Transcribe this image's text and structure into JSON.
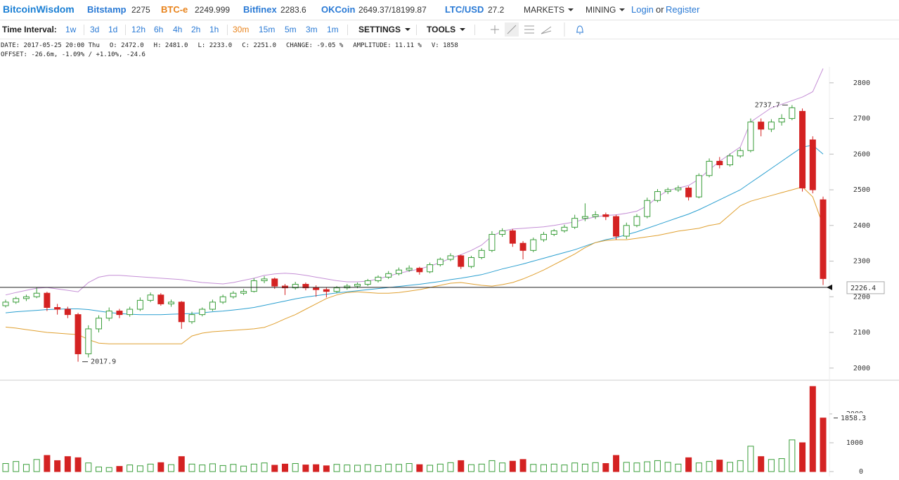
{
  "nav": {
    "brand": "BitcoinWisdom",
    "tickers": [
      {
        "name": "Bitstamp",
        "price": "2275"
      },
      {
        "name": "BTC-e",
        "price": "2249.999"
      },
      {
        "name": "Bitfinex",
        "price": "2283.6"
      },
      {
        "name": "OKCoin",
        "price": "2649.37/18199.87"
      },
      {
        "name": "LTC/USD",
        "price": "27.2"
      }
    ],
    "menus": [
      "MARKETS",
      "MINING"
    ],
    "login": "Login",
    "or": "or",
    "register": "Register"
  },
  "toolbar": {
    "label": "Time Interval:",
    "intervals": [
      "1w",
      "3d",
      "1d",
      "12h",
      "6h",
      "4h",
      "2h",
      "1h",
      "30m",
      "15m",
      "5m",
      "3m",
      "1m"
    ],
    "active_interval": 8,
    "settings": "SETTINGS",
    "tools": "TOOLS"
  },
  "info": {
    "line1": [
      "DATE: 2017-05-25 20:00 Thu",
      "O: 2472.0",
      "H: 2481.0",
      "L: 2233.0",
      "C: 2251.0",
      "CHANGE: -9.05 %",
      "AMPLITUDE: 11.11 %",
      "V: 1858"
    ],
    "line2": "OFFSET: -26.6m, -1.09% / +1.10%, -24.6"
  },
  "chart_data": {
    "type": "candlestick",
    "candles": [
      [
        2175,
        2192,
        2170,
        2185
      ],
      [
        2185,
        2200,
        2180,
        2195
      ],
      [
        2195,
        2206,
        2188,
        2200
      ],
      [
        2200,
        2226,
        2196,
        2210
      ],
      [
        2210,
        2214,
        2160,
        2170
      ],
      [
        2170,
        2180,
        2150,
        2165
      ],
      [
        2165,
        2172,
        2140,
        2150
      ],
      [
        2150,
        2155,
        2017.9,
        2040
      ],
      [
        2040,
        2120,
        2030,
        2110
      ],
      [
        2110,
        2148,
        2100,
        2140
      ],
      [
        2140,
        2170,
        2132,
        2160
      ],
      [
        2160,
        2166,
        2140,
        2150
      ],
      [
        2150,
        2172,
        2144,
        2165
      ],
      [
        2165,
        2198,
        2160,
        2190
      ],
      [
        2190,
        2212,
        2185,
        2205
      ],
      [
        2205,
        2210,
        2175,
        2180
      ],
      [
        2180,
        2192,
        2172,
        2185
      ],
      [
        2185,
        2188,
        2110,
        2130
      ],
      [
        2130,
        2158,
        2124,
        2150
      ],
      [
        2150,
        2170,
        2145,
        2165
      ],
      [
        2165,
        2192,
        2160,
        2185
      ],
      [
        2185,
        2206,
        2180,
        2200
      ],
      [
        2200,
        2216,
        2195,
        2210
      ],
      [
        2210,
        2222,
        2205,
        2215
      ],
      [
        2215,
        2252,
        2212,
        2245
      ],
      [
        2245,
        2258,
        2238,
        2250
      ],
      [
        2250,
        2254,
        2222,
        2230
      ],
      [
        2230,
        2236,
        2205,
        2225
      ],
      [
        2225,
        2242,
        2220,
        2235
      ],
      [
        2235,
        2240,
        2218,
        2225
      ],
      [
        2225,
        2232,
        2200,
        2220
      ],
      [
        2220,
        2226,
        2198,
        2215
      ],
      [
        2215,
        2230,
        2210,
        2225
      ],
      [
        2225,
        2236,
        2220,
        2230
      ],
      [
        2230,
        2240,
        2224,
        2235
      ],
      [
        2235,
        2250,
        2230,
        2245
      ],
      [
        2245,
        2260,
        2240,
        2255
      ],
      [
        2255,
        2272,
        2250,
        2265
      ],
      [
        2265,
        2282,
        2260,
        2275
      ],
      [
        2275,
        2288,
        2270,
        2280
      ],
      [
        2280,
        2284,
        2262,
        2270
      ],
      [
        2270,
        2296,
        2266,
        2290
      ],
      [
        2290,
        2310,
        2285,
        2305
      ],
      [
        2305,
        2322,
        2300,
        2315
      ],
      [
        2315,
        2318,
        2278,
        2285
      ],
      [
        2285,
        2315,
        2280,
        2310
      ],
      [
        2310,
        2336,
        2305,
        2330
      ],
      [
        2330,
        2384,
        2325,
        2375
      ],
      [
        2375,
        2392,
        2368,
        2385
      ],
      [
        2385,
        2390,
        2340,
        2350
      ],
      [
        2350,
        2356,
        2305,
        2330
      ],
      [
        2330,
        2366,
        2325,
        2360
      ],
      [
        2360,
        2382,
        2354,
        2375
      ],
      [
        2375,
        2390,
        2370,
        2385
      ],
      [
        2385,
        2402,
        2380,
        2395
      ],
      [
        2395,
        2430,
        2390,
        2420
      ],
      [
        2420,
        2462,
        2412,
        2425
      ],
      [
        2425,
        2440,
        2418,
        2430
      ],
      [
        2430,
        2436,
        2415,
        2425
      ],
      [
        2425,
        2430,
        2360,
        2370
      ],
      [
        2370,
        2408,
        2362,
        2400
      ],
      [
        2400,
        2432,
        2395,
        2425
      ],
      [
        2425,
        2478,
        2420,
        2470
      ],
      [
        2470,
        2502,
        2465,
        2495
      ],
      [
        2495,
        2506,
        2488,
        2500
      ],
      [
        2500,
        2512,
        2494,
        2505
      ],
      [
        2505,
        2510,
        2470,
        2480
      ],
      [
        2480,
        2546,
        2476,
        2540
      ],
      [
        2540,
        2588,
        2535,
        2580
      ],
      [
        2580,
        2592,
        2560,
        2570
      ],
      [
        2570,
        2602,
        2565,
        2595
      ],
      [
        2595,
        2618,
        2590,
        2610
      ],
      [
        2610,
        2700,
        2605,
        2690
      ],
      [
        2690,
        2700,
        2650,
        2670
      ],
      [
        2670,
        2698,
        2662,
        2690
      ],
      [
        2690,
        2712,
        2680,
        2700
      ],
      [
        2700,
        2737.7,
        2695,
        2730
      ],
      [
        2720,
        2728,
        2495,
        2505
      ],
      [
        2640,
        2650,
        2490,
        2500
      ],
      [
        2472,
        2481,
        2233,
        2251
      ]
    ],
    "volumes": [
      280,
      350,
      250,
      420,
      560,
      380,
      520,
      480,
      300,
      160,
      140,
      180,
      230,
      200,
      260,
      310,
      240,
      520,
      260,
      230,
      270,
      210,
      250,
      190,
      260,
      300,
      220,
      260,
      280,
      230,
      240,
      200,
      250,
      230,
      220,
      240,
      210,
      260,
      250,
      280,
      240,
      220,
      260,
      310,
      380,
      240,
      260,
      380,
      300,
      360,
      420,
      250,
      240,
      260,
      230,
      300,
      260,
      310,
      280,
      560,
      320,
      300,
      340,
      380,
      320,
      260,
      480,
      300,
      350,
      400,
      320,
      380,
      880,
      520,
      420,
      450,
      1100,
      1000,
      2950,
      1858.3
    ],
    "series": [
      {
        "color": "#c58fd6",
        "values": [
          2205,
          2212,
          2218,
          2224,
          2226,
          2222,
          2218,
          2214,
          2240,
          2255,
          2260,
          2260,
          2258,
          2256,
          2254,
          2252,
          2250,
          2248,
          2244,
          2240,
          2238,
          2236,
          2240,
          2246,
          2252,
          2260,
          2264,
          2266,
          2264,
          2260,
          2255,
          2250,
          2245,
          2242,
          2242,
          2244,
          2250,
          2258,
          2266,
          2272,
          2278,
          2286,
          2296,
          2308,
          2318,
          2330,
          2345,
          2370,
          2384,
          2390,
          2392,
          2394,
          2396,
          2400,
          2405,
          2410,
          2418,
          2424,
          2428,
          2430,
          2434,
          2440,
          2455,
          2480,
          2498,
          2505,
          2512,
          2530,
          2556,
          2580,
          2600,
          2620,
          2690,
          2710,
          2730,
          2740,
          2750,
          2760,
          2775,
          2840
        ]
      },
      {
        "color": "#2a9fd0",
        "values": [
          2155,
          2158,
          2160,
          2162,
          2164,
          2165,
          2166,
          2166,
          2164,
          2160,
          2156,
          2153,
          2151,
          2150,
          2150,
          2150,
          2151,
          2152,
          2153,
          2155,
          2158,
          2160,
          2163,
          2166,
          2170,
          2176,
          2182,
          2188,
          2194,
          2199,
          2203,
          2207,
          2211,
          2214,
          2217,
          2220,
          2223,
          2226,
          2229,
          2232,
          2235,
          2239,
          2243,
          2248,
          2252,
          2257,
          2262,
          2270,
          2278,
          2285,
          2292,
          2300,
          2308,
          2316,
          2324,
          2332,
          2342,
          2352,
          2360,
          2366,
          2374,
          2382,
          2392,
          2402,
          2412,
          2422,
          2432,
          2444,
          2458,
          2472,
          2486,
          2500,
          2520,
          2540,
          2560,
          2580,
          2600,
          2620,
          2625,
          2600
        ]
      },
      {
        "color": "#e0a030",
        "values": [
          2115,
          2112,
          2108,
          2104,
          2100,
          2098,
          2096,
          2094,
          2080,
          2070,
          2068,
          2068,
          2068,
          2068,
          2068,
          2068,
          2068,
          2068,
          2090,
          2098,
          2102,
          2104,
          2106,
          2108,
          2110,
          2114,
          2125,
          2138,
          2150,
          2165,
          2180,
          2195,
          2205,
          2212,
          2214,
          2212,
          2210,
          2210,
          2212,
          2216,
          2220,
          2226,
          2232,
          2238,
          2240,
          2236,
          2232,
          2230,
          2234,
          2240,
          2250,
          2262,
          2275,
          2290,
          2305,
          2320,
          2338,
          2352,
          2358,
          2360,
          2360,
          2364,
          2368,
          2372,
          2378,
          2384,
          2388,
          2392,
          2400,
          2405,
          2430,
          2455,
          2468,
          2476,
          2484,
          2492,
          2500,
          2508,
          2480,
          2400
        ]
      }
    ],
    "up_color": "#3a9e3a",
    "down_color": "#d42222",
    "last_price": 2226.4,
    "low_marker": 7,
    "high_marker": 76,
    "ylim": [
      1968,
      2845
    ],
    "yticks": [
      2000,
      2100,
      2200,
      2300,
      2400,
      2500,
      2600,
      2700,
      2800
    ],
    "vlim": [
      -170,
      3120
    ],
    "vticks": [
      0,
      1000,
      2000
    ]
  }
}
